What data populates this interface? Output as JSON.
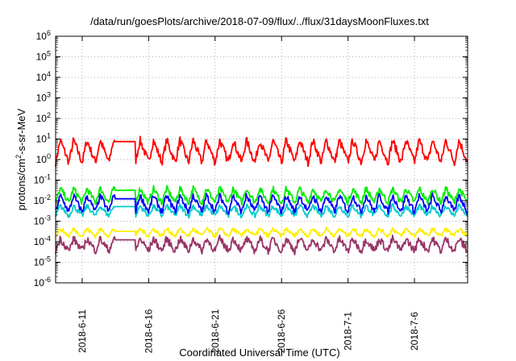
{
  "chart_data": {
    "type": "line",
    "title": "/data/run/goesPlots/archive/2018-07-09/flux/../flux/31daysMoonFluxes.txt",
    "xlabel": "Coordinated Universal Time (UTC)",
    "ylabel": "protons/cm2-s-sr-MeV",
    "ylabel_parts": {
      "pre": "protons/cm",
      "sup": "2",
      "post": "-s-sr-MeV"
    },
    "xlim": [
      "2018-06-09",
      "2018-07-10"
    ],
    "ylim": [
      1e-06,
      1000000.0
    ],
    "yscale": "log",
    "grid": true,
    "x_ticks": [
      "2018-6-11",
      "2018-6-16",
      "2018-6-21",
      "2018-6-26",
      "2018-7-1",
      "2018-7-6"
    ],
    "y_ticks": [
      {
        "base": "10",
        "exp": "-6"
      },
      {
        "base": "10",
        "exp": "-5"
      },
      {
        "base": "10",
        "exp": "-4"
      },
      {
        "base": "10",
        "exp": "-3"
      },
      {
        "base": "10",
        "exp": "-2"
      },
      {
        "base": "10",
        "exp": "-1"
      },
      {
        "base": "10",
        "exp": "0"
      },
      {
        "base": "10",
        "exp": "1"
      },
      {
        "base": "10",
        "exp": "2"
      },
      {
        "base": "10",
        "exp": "3"
      },
      {
        "base": "10",
        "exp": "4"
      },
      {
        "base": "10",
        "exp": "5"
      },
      {
        "base": "10",
        "exp": "6"
      }
    ],
    "series": [
      {
        "color": "#ff0000",
        "baseline_log10": 0.4,
        "amplitude": 0.55,
        "noise": 0.2
      },
      {
        "color": "#00ee00",
        "baseline_log10": -1.75,
        "amplitude": 0.35,
        "noise": 0.15
      },
      {
        "color": "#00cccc",
        "baseline_log10": -2.5,
        "amplitude": 0.25,
        "noise": 0.12
      },
      {
        "color": "#0000ff",
        "baseline_log10": -2.15,
        "amplitude": 0.4,
        "noise": 0.15
      },
      {
        "color": "#ffee00",
        "baseline_log10": -3.55,
        "amplitude": 0.18,
        "noise": 0.1
      },
      {
        "color": "#993366",
        "baseline_log10": -4.15,
        "amplitude": 0.3,
        "noise": 0.18
      }
    ]
  }
}
